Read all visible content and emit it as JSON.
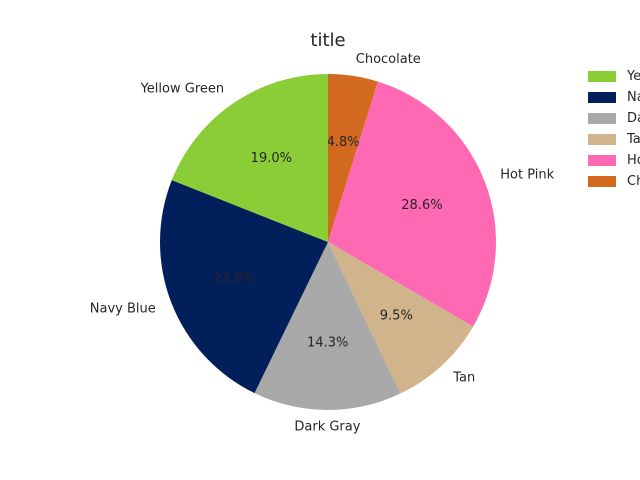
{
  "chart_data": {
    "type": "pie",
    "title": "title",
    "start_angle_deg": 90,
    "direction": "clockwise",
    "legend_position": "right",
    "slices": [
      {
        "label": "Chocolate",
        "value": 4.8,
        "pct_label": "4.8%",
        "color": "#D2691E"
      },
      {
        "label": "Hot Pink",
        "value": 28.6,
        "pct_label": "28.6%",
        "color": "#FF69B4"
      },
      {
        "label": "Tan",
        "value": 9.5,
        "pct_label": "9.5%",
        "color": "#D2B48C"
      },
      {
        "label": "Dark Gray",
        "value": 14.3,
        "pct_label": "14.3%",
        "color": "#A9A9A9"
      },
      {
        "label": "Navy Blue",
        "value": 23.8,
        "pct_label": "23.8%",
        "color": "#001F5B"
      },
      {
        "label": "Yellow Green",
        "value": 19.0,
        "pct_label": "19.0%",
        "color": "#8ACD37"
      }
    ],
    "legend": [
      {
        "label": "Yellow Green",
        "color": "#8ACD37"
      },
      {
        "label": "Navy Blue",
        "color": "#001F5B"
      },
      {
        "label": "Dark Gray",
        "color": "#A9A9A9"
      },
      {
        "label": "Tan",
        "color": "#D2B48C"
      },
      {
        "label": "Hot Pink",
        "color": "#FF69B4"
      },
      {
        "label": "Chocolate",
        "color": "#D2691E"
      }
    ]
  }
}
